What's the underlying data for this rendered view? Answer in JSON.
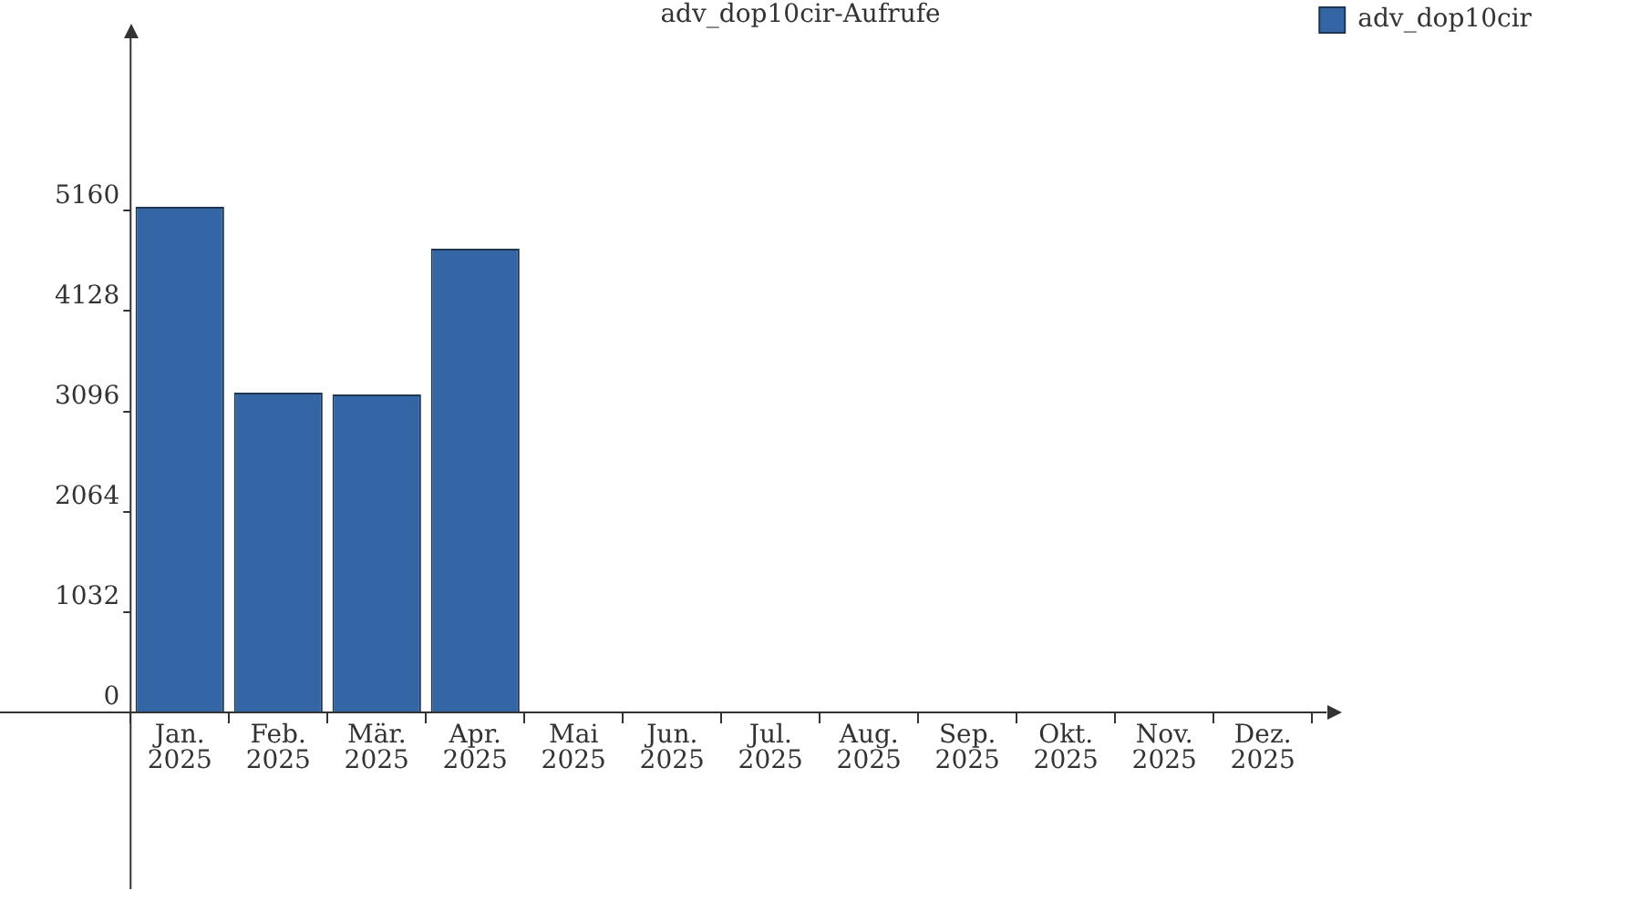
{
  "chart_data": {
    "type": "bar",
    "title": "adv_dop10cir-Aufrufe",
    "categories": [
      "Jan. 2025",
      "Feb. 2025",
      "Mär. 2025",
      "Apr. 2025",
      "Mai 2025",
      "Jun. 2025",
      "Jul. 2025",
      "Aug. 2025",
      "Sep. 2025",
      "Okt. 2025",
      "Nov. 2025",
      "Dez. 2025"
    ],
    "series": [
      {
        "name": "adv_dop10cir",
        "color": "#3465a4",
        "values": [
          5200,
          3290,
          3270,
          4770,
          0,
          0,
          0,
          0,
          0,
          0,
          0,
          0
        ]
      }
    ],
    "ylim": [
      0,
      6900
    ],
    "yticks": [
      0,
      1032,
      2064,
      3096,
      4128,
      5160
    ],
    "grid": false,
    "legend": "top right"
  }
}
